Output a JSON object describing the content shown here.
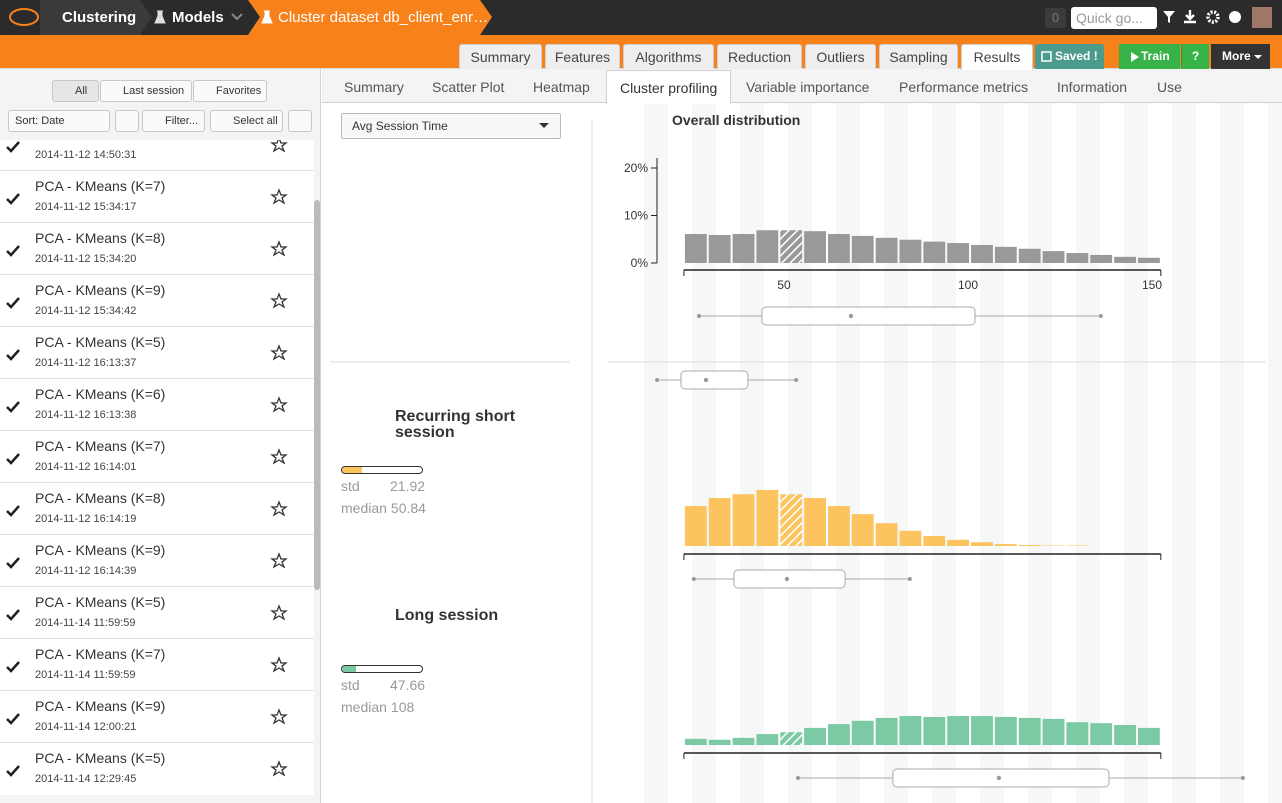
{
  "topbar": {
    "breadcrumbs": [
      "Clustering",
      "Models",
      "Cluster dataset db_client_enr…"
    ],
    "notifications": 0,
    "search_placeholder": "Quick go..."
  },
  "tabs": {
    "items": [
      "Summary",
      "Features",
      "Algorithms",
      "Reduction",
      "Outliers",
      "Sampling",
      "Results"
    ],
    "active": 6,
    "saved": "Saved !",
    "train": "Train",
    "help": "?",
    "more": "More"
  },
  "sidebar": {
    "filters": [
      "All",
      "Last session",
      "Favorites"
    ],
    "sort": "Sort: Date",
    "filter": "Filter...",
    "select_all": "Select all",
    "models": [
      {
        "date": "2014-11-12 14:50:31"
      },
      {
        "name": "PCA - KMeans (K=7)",
        "date": "2014-11-12 15:34:17"
      },
      {
        "name": "PCA - KMeans (K=8)",
        "date": "2014-11-12 15:34:20"
      },
      {
        "name": "PCA - KMeans (K=9)",
        "date": "2014-11-12 15:34:42"
      },
      {
        "name": "PCA - KMeans (K=5)",
        "date": "2014-11-12 16:13:37"
      },
      {
        "name": "PCA - KMeans (K=6)",
        "date": "2014-11-12 16:13:38"
      },
      {
        "name": "PCA - KMeans (K=7)",
        "date": "2014-11-12 16:14:01"
      },
      {
        "name": "PCA - KMeans (K=8)",
        "date": "2014-11-12 16:14:19"
      },
      {
        "name": "PCA - KMeans (K=9)",
        "date": "2014-11-12 16:14:39"
      },
      {
        "name": "PCA - KMeans (K=5)",
        "date": "2014-11-14 11:59:59"
      },
      {
        "name": "PCA - KMeans (K=7)",
        "date": "2014-11-14 11:59:59"
      },
      {
        "name": "PCA - KMeans (K=9)",
        "date": "2014-11-14 12:00:21"
      },
      {
        "name": "PCA - KMeans (K=5)",
        "date": "2014-11-14 12:29:45"
      }
    ]
  },
  "subtabs": {
    "items": [
      "Summary",
      "Scatter Plot",
      "Heatmap",
      "Cluster profiling",
      "Variable importance",
      "Performance metrics",
      "Information",
      "Use"
    ],
    "active": 3
  },
  "profiling": {
    "variable": "Avg Session Time",
    "labels": {
      "std": "std",
      "median": "median"
    },
    "bins": [
      22.8,
      29.28,
      35.76,
      42.24,
      48.72,
      55.2,
      61.68,
      68.16,
      74.64,
      81.12,
      87.6,
      94.08,
      100.56,
      107.04,
      113.52,
      120,
      126.48,
      132.96,
      139.44,
      145.92,
      152.4
    ],
    "xlim": [
      22.8,
      152.4
    ],
    "xticks": [
      50,
      100,
      150
    ],
    "highlight_bin": 4,
    "overall": {
      "title": "Overall distribution",
      "type": "histogram",
      "color": "#999999",
      "values": [
        6.1,
        5.9,
        6.1,
        6.9,
        6.9,
        6.7,
        6.1,
        5.7,
        5.3,
        4.9,
        4.5,
        4.2,
        3.8,
        3.4,
        3.0,
        2.5,
        2.1,
        1.7,
        1.3,
        1.1
      ],
      "ylim": [
        0,
        20
      ],
      "yticks": [
        {
          "value": 0,
          "label": "0%"
        },
        {
          "value": 10,
          "label": "10%"
        },
        {
          "value": 20,
          "label": "20%"
        }
      ],
      "box": {
        "min": 26.9,
        "q1": 44.0,
        "median": 68.2,
        "q3": 101.9,
        "max": 136.1
      }
    },
    "clusters": [
      {
        "box": {
          "min": 15.5,
          "q1": 22.0,
          "median": 28.8,
          "q3": 40.2,
          "max": 53.3
        }
      },
      {
        "name": "Recurring short session",
        "color": "#fcc35f",
        "share": 0.25,
        "std": 21.92,
        "median": 50.84,
        "values": [
          8.4,
          10.1,
          10.9,
          11.8,
          10.9,
          10.1,
          8.4,
          6.7,
          4.8,
          3.2,
          2.1,
          1.3,
          0.8,
          0.4,
          0.2,
          0.1,
          0.1,
          0,
          0,
          0
        ],
        "box": {
          "min": 25.5,
          "q1": 36.4,
          "median": 50.8,
          "q3": 66.6,
          "max": 84.2
        }
      },
      {
        "name": "Long session",
        "color": "#7bcaa4",
        "share": 0.18,
        "std": 47.66,
        "median": 108,
        "values": [
          1.3,
          1.1,
          1.5,
          2.3,
          2.7,
          3.6,
          4.4,
          5.1,
          5.7,
          6.1,
          5.9,
          6.1,
          6.1,
          5.9,
          5.7,
          5.5,
          4.8,
          4.6,
          4.2,
          3.6
        ],
        "box": {
          "min": 53.8,
          "q1": 79.6,
          "median": 108.4,
          "q3": 138.3,
          "max": 174.7
        }
      }
    ]
  }
}
